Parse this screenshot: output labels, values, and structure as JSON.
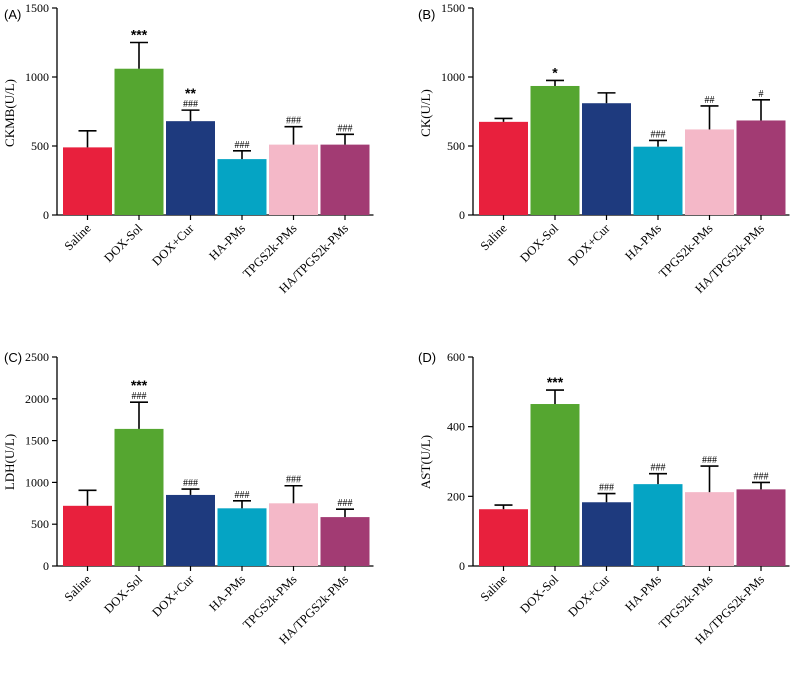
{
  "chart_data": [
    {
      "type": "bar",
      "panel_label": "(A)",
      "ylabel": "CKMB(U/L)",
      "ylim": [
        0,
        1500
      ],
      "yticks": [
        0,
        500,
        1000,
        1500
      ],
      "categories": [
        "Saline",
        "DOX-Sol",
        "DOX+Cur",
        "HA-PMs",
        "TPGS2k-PMs",
        "HA/TPGS2k-PMs"
      ],
      "values": [
        490,
        1060,
        680,
        405,
        510,
        510
      ],
      "errors": [
        120,
        190,
        80,
        60,
        130,
        75
      ],
      "stars": [
        "",
        "***",
        "**",
        "",
        "",
        ""
      ],
      "hashes": [
        "",
        "",
        "###",
        "###",
        "###",
        "###"
      ]
    },
    {
      "type": "bar",
      "panel_label": "(B)",
      "ylabel": "CK(U/L)",
      "ylim": [
        0,
        1500
      ],
      "yticks": [
        0,
        500,
        1000,
        1500
      ],
      "categories": [
        "Saline",
        "DOX-Sol",
        "DOX+Cur",
        "HA-PMs",
        "TPGS2k-PMs",
        "HA/TPGS2k-PMs"
      ],
      "values": [
        675,
        935,
        810,
        495,
        620,
        685
      ],
      "errors": [
        25,
        40,
        75,
        45,
        170,
        150
      ],
      "stars": [
        "",
        "*",
        "",
        "",
        "",
        ""
      ],
      "hashes": [
        "",
        "",
        "",
        "###",
        "##",
        "#"
      ]
    },
    {
      "type": "bar",
      "panel_label": "(C)",
      "ylabel": "LDH(U/L)",
      "ylim": [
        0,
        2500
      ],
      "yticks": [
        0,
        500,
        1000,
        1500,
        2000,
        2500
      ],
      "categories": [
        "Saline",
        "DOX-Sol",
        "DOX+Cur",
        "HA-PMs",
        "TPGS2k-PMs",
        "HA/TPGS2k-PMs"
      ],
      "values": [
        720,
        1640,
        850,
        690,
        750,
        585
      ],
      "errors": [
        185,
        320,
        70,
        90,
        210,
        95
      ],
      "stars": [
        "",
        "***",
        "",
        "",
        "",
        ""
      ],
      "hashes": [
        "",
        "###",
        "###",
        "###",
        "###",
        "###"
      ]
    },
    {
      "type": "bar",
      "panel_label": "(D)",
      "ylabel": "AST(U/L)",
      "ylim": [
        0,
        600
      ],
      "yticks": [
        0,
        200,
        400,
        600
      ],
      "categories": [
        "Saline",
        "DOX-Sol",
        "DOX+Cur",
        "HA-PMs",
        "TPGS2k-PMs",
        "HA/TPGS2k-PMs"
      ],
      "values": [
        163,
        465,
        183,
        235,
        212,
        220
      ],
      "errors": [
        12,
        40,
        25,
        30,
        75,
        20
      ],
      "stars": [
        "",
        "***",
        "",
        "",
        "",
        ""
      ],
      "hashes": [
        "",
        "",
        "###",
        "###",
        "###",
        "###"
      ]
    }
  ],
  "colors": {
    "bars": [
      "#e8203d",
      "#55a630",
      "#1e3a7e",
      "#05a4c4",
      "#f4b8c8",
      "#a23b73"
    ],
    "axis": "#000000"
  }
}
